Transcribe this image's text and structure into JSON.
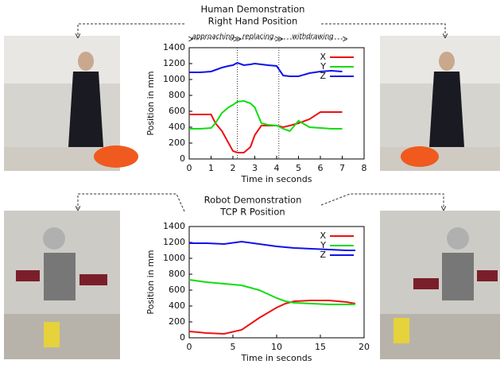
{
  "chart_data": [
    {
      "type": "line",
      "title": "Human Demonstration",
      "subtitle": "Right Hand Position",
      "xlabel": "Time in seconds",
      "ylabel": "Position in mm",
      "x": [
        0,
        0.5,
        1,
        1.2,
        1.5,
        1.8,
        2,
        2.2,
        2.5,
        2.8,
        3,
        3.3,
        3.6,
        4,
        4.3,
        4.6,
        5,
        5.5,
        6,
        6.5,
        7
      ],
      "series": [
        {
          "name": "X",
          "color": "#ee1111",
          "values": [
            560,
            560,
            560,
            450,
            350,
            200,
            100,
            80,
            80,
            150,
            300,
            420,
            420,
            420,
            400,
            420,
            450,
            500,
            590,
            590,
            590
          ]
        },
        {
          "name": "Y",
          "color": "#11dd11",
          "values": [
            380,
            380,
            390,
            450,
            580,
            650,
            680,
            720,
            730,
            700,
            650,
            450,
            430,
            420,
            380,
            350,
            480,
            400,
            390,
            380,
            380
          ]
        },
        {
          "name": "Z",
          "color": "#1111ee",
          "values": [
            1090,
            1090,
            1100,
            1120,
            1150,
            1170,
            1180,
            1210,
            1180,
            1190,
            1200,
            1190,
            1180,
            1170,
            1050,
            1040,
            1040,
            1080,
            1100,
            1110,
            1100
          ]
        }
      ],
      "phases": [
        {
          "label": "approaching",
          "start": 0,
          "end": 2.2
        },
        {
          "label": "replacing",
          "start": 2.2,
          "end": 4.1
        },
        {
          "label": "withdrawing",
          "start": 4.1,
          "end": 7.2
        }
      ],
      "xlim": [
        0,
        8
      ],
      "xticks": [
        0,
        1,
        2,
        3,
        4,
        5,
        6,
        7,
        8
      ],
      "ylim": [
        0,
        1400
      ],
      "yticks": [
        0,
        200,
        400,
        600,
        800,
        1000,
        1200,
        1400
      ],
      "grid": false,
      "legend": "upper right"
    },
    {
      "type": "line",
      "title": "Robot Demonstration",
      "subtitle": "TCP R Position",
      "xlabel": "Time in seconds",
      "ylabel": "Position in mm",
      "x": [
        0,
        2,
        4,
        6,
        8,
        10,
        11,
        12,
        14,
        16,
        18,
        19
      ],
      "series": [
        {
          "name": "X",
          "color": "#ee1111",
          "values": [
            80,
            60,
            50,
            100,
            250,
            380,
            430,
            460,
            470,
            470,
            450,
            430
          ]
        },
        {
          "name": "Y",
          "color": "#11dd11",
          "values": [
            730,
            700,
            680,
            660,
            600,
            500,
            460,
            440,
            430,
            420,
            420,
            420
          ]
        },
        {
          "name": "Z",
          "color": "#1111ee",
          "values": [
            1190,
            1190,
            1180,
            1210,
            1180,
            1150,
            1140,
            1130,
            1120,
            1110,
            1100,
            1100
          ]
        }
      ],
      "xlim": [
        0,
        20
      ],
      "xticks": [
        0,
        5,
        10,
        15,
        20
      ],
      "ylim": [
        0,
        1400
      ],
      "yticks": [
        0,
        200,
        400,
        600,
        800,
        1000,
        1200,
        1400
      ],
      "grid": false,
      "legend": "upper right"
    }
  ]
}
